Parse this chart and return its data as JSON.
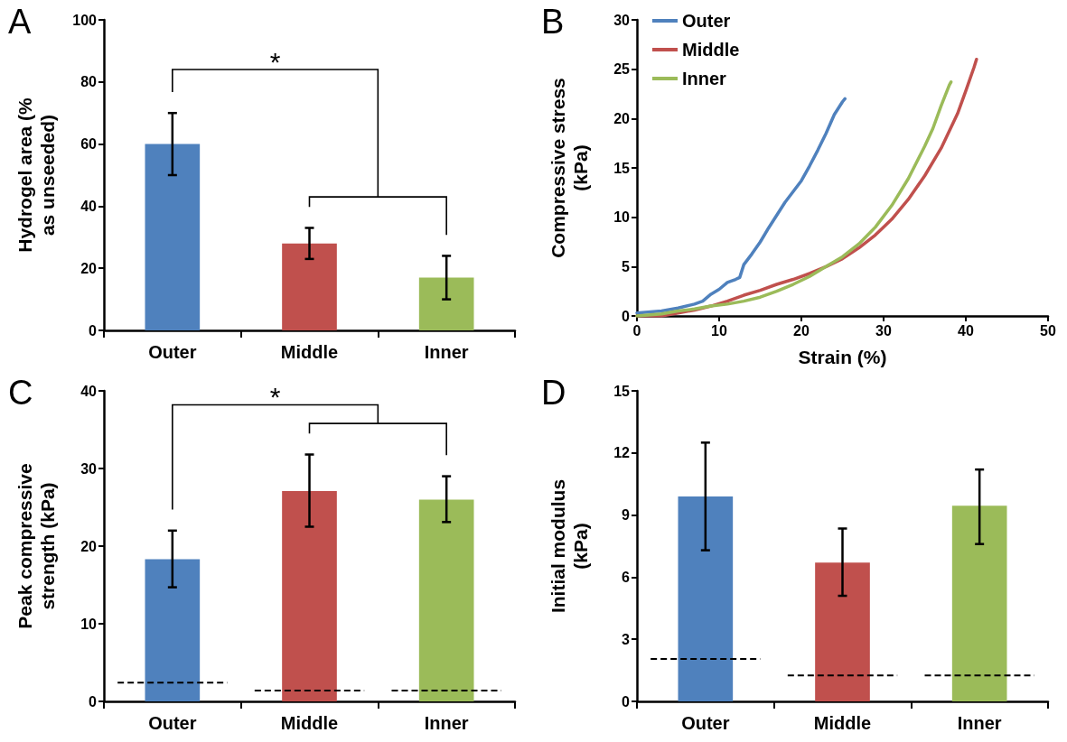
{
  "chart_data": [
    {
      "type": "bar",
      "title": "A",
      "ylabel": "Hydrogel area (%\nas unseeded)",
      "categories": [
        "Outer",
        "Middle",
        "Inner"
      ],
      "ylim": [
        0,
        100
      ],
      "yticks": [
        0,
        20,
        40,
        60,
        80,
        100
      ],
      "annotations": [
        "*"
      ],
      "series": [
        {
          "type": "bar",
          "values": [
            60,
            28,
            17
          ],
          "colors": [
            "#4f81bd",
            "#c0504d",
            "#9bbb59"
          ],
          "errors": [
            [
              50,
              70
            ],
            [
              23,
              33
            ],
            [
              10,
              24
            ]
          ]
        }
      ]
    },
    {
      "type": "line",
      "title": "B",
      "xlabel": "Strain (%)",
      "ylabel": "Compressive stress\n(kPa)",
      "xlim": [
        0,
        50
      ],
      "xticks": [
        0,
        10,
        20,
        30,
        40,
        50
      ],
      "ylim": [
        0,
        30
      ],
      "yticks": [
        0,
        5,
        10,
        15,
        20,
        25,
        30
      ],
      "legend": "top left",
      "marker": "none",
      "series": [
        {
          "name": "Outer",
          "color": "#4f81bd",
          "x": [
            0,
            3,
            5,
            7,
            8,
            9,
            10,
            11,
            12,
            12.5,
            13,
            14,
            15,
            16,
            17,
            18,
            19,
            20,
            21,
            22,
            23,
            24,
            25,
            25.3
          ],
          "values": [
            0.3,
            0.5,
            0.8,
            1.2,
            1.5,
            2.2,
            2.7,
            3.4,
            3.7,
            3.9,
            5.2,
            6.3,
            7.5,
            8.9,
            10.2,
            11.5,
            12.6,
            13.7,
            15.2,
            16.8,
            18.5,
            20.4,
            21.7,
            22.0
          ]
        },
        {
          "name": "Middle",
          "color": "#c0504d",
          "x": [
            0,
            3,
            5,
            7,
            9,
            11,
            13,
            15,
            17,
            19,
            21,
            23,
            25,
            27,
            29,
            31,
            33,
            35,
            37,
            39,
            40,
            41,
            41.3
          ],
          "values": [
            0,
            0,
            0.3,
            0.6,
            1.0,
            1.5,
            2.1,
            2.6,
            3.2,
            3.7,
            4.3,
            5.0,
            5.8,
            6.9,
            8.2,
            9.8,
            11.8,
            14.2,
            17.0,
            20.5,
            22.8,
            25.2,
            26.0
          ]
        },
        {
          "name": "Inner",
          "color": "#9bbb59",
          "x": [
            0,
            3,
            5,
            7,
            9,
            11,
            13,
            15,
            17,
            19,
            21,
            23,
            25,
            27,
            29,
            31,
            33,
            35,
            36,
            37,
            38,
            38.2
          ],
          "values": [
            0,
            0.2,
            0.5,
            0.7,
            1.0,
            1.2,
            1.5,
            1.9,
            2.5,
            3.2,
            4.0,
            5.0,
            6.0,
            7.3,
            9.0,
            11.2,
            13.9,
            17.2,
            19.0,
            21.3,
            23.4,
            23.7
          ]
        }
      ]
    },
    {
      "type": "bar",
      "title": "C",
      "ylabel": "Peak compressive\nstrength (kPa)",
      "categories": [
        "Outer",
        "Middle",
        "Inner"
      ],
      "ylim": [
        0,
        40
      ],
      "yticks": [
        0,
        10,
        20,
        30,
        40
      ],
      "annotations": [
        "*"
      ],
      "ref_lines": [
        {
          "axis": "y",
          "value": 2.4,
          "color": "#000000",
          "line_style": "dashed"
        },
        {
          "axis": "y",
          "value": 1.4,
          "color": "#000000",
          "line_style": "dashed"
        }
      ],
      "series": [
        {
          "type": "bar",
          "values": [
            18.3,
            27.1,
            26.0
          ],
          "colors": [
            "#4f81bd",
            "#c0504d",
            "#9bbb59"
          ],
          "errors": [
            [
              14.7,
              22.0
            ],
            [
              22.5,
              31.8
            ],
            [
              23.1,
              29.0
            ]
          ]
        }
      ]
    },
    {
      "type": "bar",
      "title": "D",
      "ylabel": "Initial modulus\n(kPa)",
      "categories": [
        "Outer",
        "Middle",
        "Inner"
      ],
      "ylim": [
        0,
        15
      ],
      "yticks": [
        0,
        3,
        6,
        9,
        12,
        15
      ],
      "ref_lines": [
        {
          "axis": "y",
          "value": 2.05,
          "color": "#000000",
          "line_style": "dashed"
        },
        {
          "axis": "y",
          "value": 1.25,
          "color": "#000000",
          "line_style": "dashed"
        }
      ],
      "series": [
        {
          "type": "bar",
          "values": [
            9.9,
            6.7,
            9.45
          ],
          "colors": [
            "#4f81bd",
            "#c0504d",
            "#9bbb59"
          ],
          "errors": [
            [
              7.3,
              12.5
            ],
            [
              5.1,
              8.35
            ],
            [
              7.6,
              11.2
            ]
          ]
        }
      ]
    }
  ]
}
